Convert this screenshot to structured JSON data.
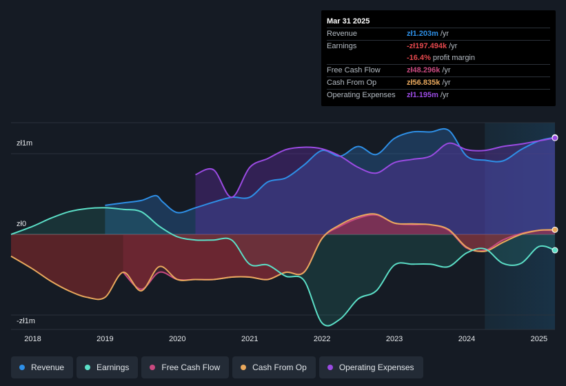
{
  "chart_data": {
    "type": "area",
    "title": "",
    "xlabel": "",
    "ylabel": "",
    "ylim": [
      -1.22,
      1.38
    ],
    "y_unit": "zł millions",
    "y_tick_labels": [
      {
        "value": 1,
        "label": "zł1m"
      },
      {
        "value": 0,
        "label": "zł0"
      },
      {
        "value": -1,
        "label": "-zł1m"
      }
    ],
    "x_range": [
      2017.7,
      2025.22
    ],
    "x_ticks": [
      "2018",
      "2019",
      "2020",
      "2021",
      "2022",
      "2023",
      "2024",
      "2025"
    ],
    "forecast_start": 2024.25,
    "series": [
      {
        "name": "Revenue",
        "color": "#2e90e8",
        "x": [
          2019.0,
          2019.25,
          2019.5,
          2019.7,
          2019.8,
          2020.0,
          2020.25,
          2020.5,
          2020.75,
          2021.0,
          2021.25,
          2021.5,
          2021.75,
          2022.0,
          2022.25,
          2022.5,
          2022.75,
          2023.0,
          2023.25,
          2023.5,
          2023.75,
          2024.0,
          2024.25,
          2024.5,
          2024.75,
          2025.0,
          2025.22
        ],
        "values": [
          0.36,
          0.39,
          0.42,
          0.48,
          0.4,
          0.27,
          0.33,
          0.4,
          0.46,
          0.46,
          0.65,
          0.7,
          0.86,
          1.04,
          0.97,
          1.09,
          0.99,
          1.19,
          1.27,
          1.27,
          1.29,
          0.97,
          0.92,
          0.91,
          1.05,
          1.16,
          1.203
        ]
      },
      {
        "name": "Earnings",
        "color": "#5ce0c8",
        "x": [
          2017.7,
          2018.0,
          2018.25,
          2018.5,
          2018.75,
          2019.0,
          2019.25,
          2019.5,
          2019.75,
          2020.0,
          2020.25,
          2020.5,
          2020.75,
          2021.0,
          2021.25,
          2021.5,
          2021.75,
          2022.0,
          2022.25,
          2022.5,
          2022.75,
          2023.0,
          2023.25,
          2023.5,
          2023.75,
          2024.0,
          2024.25,
          2024.5,
          2024.75,
          2025.0,
          2025.22
        ],
        "values": [
          0.0,
          0.1,
          0.2,
          0.28,
          0.32,
          0.33,
          0.31,
          0.28,
          0.1,
          -0.03,
          -0.07,
          -0.07,
          -0.07,
          -0.37,
          -0.38,
          -0.52,
          -0.57,
          -1.1,
          -1.05,
          -0.8,
          -0.7,
          -0.38,
          -0.37,
          -0.37,
          -0.4,
          -0.23,
          -0.18,
          -0.36,
          -0.36,
          -0.15,
          -0.197
        ]
      },
      {
        "name": "Free Cash Flow",
        "color": "#c94a80",
        "x": [
          2019.25,
          2019.5,
          2019.75,
          2020.0,
          2020.25,
          2020.5,
          2020.75,
          2021.0,
          2021.25,
          2021.5,
          2021.75,
          2022.0,
          2022.25,
          2022.5,
          2022.75,
          2023.0,
          2023.25,
          2023.5,
          2023.75,
          2024.0,
          2024.25,
          2024.5,
          2024.75,
          2025.0,
          2025.22
        ],
        "values": [
          -0.47,
          -0.68,
          -0.47,
          -0.56,
          -0.56,
          -0.56,
          -0.53,
          -0.53,
          -0.56,
          -0.47,
          -0.47,
          -0.05,
          0.1,
          0.2,
          0.24,
          0.14,
          0.12,
          0.12,
          0.05,
          -0.17,
          -0.2,
          -0.07,
          0.01,
          0.05,
          0.048
        ]
      },
      {
        "name": "Cash From Op",
        "color": "#eaa95d",
        "x": [
          2017.7,
          2018.0,
          2018.25,
          2018.5,
          2018.75,
          2019.0,
          2019.25,
          2019.5,
          2019.75,
          2020.0,
          2020.25,
          2020.5,
          2020.75,
          2021.0,
          2021.25,
          2021.5,
          2021.75,
          2022.0,
          2022.25,
          2022.5,
          2022.75,
          2023.0,
          2023.25,
          2023.5,
          2023.75,
          2024.0,
          2024.25,
          2024.5,
          2024.75,
          2025.0,
          2025.22
        ],
        "values": [
          -0.27,
          -0.43,
          -0.58,
          -0.7,
          -0.78,
          -0.78,
          -0.47,
          -0.7,
          -0.4,
          -0.56,
          -0.56,
          -0.56,
          -0.53,
          -0.53,
          -0.56,
          -0.47,
          -0.47,
          -0.05,
          0.12,
          0.22,
          0.25,
          0.14,
          0.13,
          0.12,
          0.06,
          -0.16,
          -0.21,
          -0.1,
          0.0,
          0.05,
          0.057
        ]
      },
      {
        "name": "Operating Expenses",
        "color": "#9b4be3",
        "x": [
          2020.25,
          2020.5,
          2020.75,
          2021.0,
          2021.25,
          2021.5,
          2021.75,
          2022.0,
          2022.25,
          2022.5,
          2022.75,
          2023.0,
          2023.25,
          2023.5,
          2023.75,
          2024.0,
          2024.25,
          2024.5,
          2024.75,
          2025.0,
          2025.22
        ],
        "values": [
          0.74,
          0.8,
          0.46,
          0.83,
          0.94,
          1.05,
          1.08,
          1.06,
          0.97,
          0.83,
          0.76,
          0.89,
          0.93,
          0.97,
          1.13,
          1.05,
          1.04,
          1.09,
          1.12,
          1.16,
          1.195
        ]
      }
    ]
  },
  "tooltip": {
    "date": "Mar 31 2025",
    "rows": [
      {
        "label": "Revenue",
        "value": "zł1.203m",
        "unit": "/yr",
        "color": "#2e90e8"
      },
      {
        "label": "Earnings",
        "value": "-zł197.494k",
        "unit": "/yr",
        "color": "#e5484d"
      },
      {
        "label": "",
        "value": "-16.4%",
        "unit": "profit margin",
        "color": "#e5484d"
      },
      {
        "label": "Free Cash Flow",
        "value": "zł48.296k",
        "unit": "/yr",
        "color": "#c94a80"
      },
      {
        "label": "Cash From Op",
        "value": "zł56.835k",
        "unit": "/yr",
        "color": "#eaa95d"
      },
      {
        "label": "Operating Expenses",
        "value": "zł1.195m",
        "unit": "/yr",
        "color": "#9b4be3"
      }
    ]
  },
  "legend": [
    {
      "label": "Revenue",
      "color": "#2e90e8"
    },
    {
      "label": "Earnings",
      "color": "#5ce0c8"
    },
    {
      "label": "Free Cash Flow",
      "color": "#c94a80"
    },
    {
      "label": "Cash From Op",
      "color": "#eaa95d"
    },
    {
      "label": "Operating Expenses",
      "color": "#9b4be3"
    }
  ]
}
